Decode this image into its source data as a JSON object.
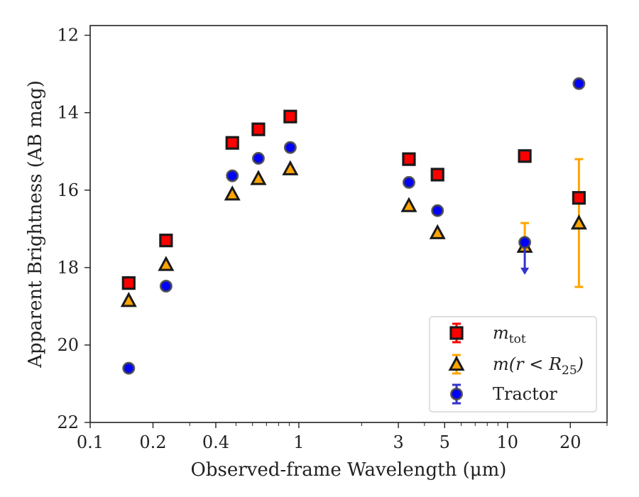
{
  "chart_data": {
    "type": "scatter",
    "xlabel": "Observed-frame Wavelength (μm)",
    "ylabel": "Apparent Brightness (AB mag)",
    "x_scale": "log",
    "xlim": [
      0.1,
      30
    ],
    "ylim": [
      22,
      11.75
    ],
    "y_inverted": true,
    "x_ticks": [
      {
        "value": 0.1,
        "label": "0.1"
      },
      {
        "value": 0.2,
        "label": "0.2"
      },
      {
        "value": 0.4,
        "label": "0.4"
      },
      {
        "value": 1,
        "label": "1"
      },
      {
        "value": 3,
        "label": "3"
      },
      {
        "value": 5,
        "label": "5"
      },
      {
        "value": 10,
        "label": "10"
      },
      {
        "value": 20,
        "label": "20"
      }
    ],
    "y_ticks": [
      {
        "value": 12,
        "label": "12"
      },
      {
        "value": 14,
        "label": "14"
      },
      {
        "value": 16,
        "label": "16"
      },
      {
        "value": 18,
        "label": "18"
      },
      {
        "value": 20,
        "label": "20"
      },
      {
        "value": 22,
        "label": "22"
      }
    ],
    "grid": false,
    "legend_position": "bottom-right",
    "series": [
      {
        "name": "m_tot",
        "label_main": "m",
        "label_sub": "tot",
        "marker": "square",
        "color": "#ff0000",
        "edge_color": "#1a1a1a",
        "points": [
          {
            "x": 0.153,
            "y": 18.4
          },
          {
            "x": 0.231,
            "y": 17.3
          },
          {
            "x": 0.48,
            "y": 14.78
          },
          {
            "x": 0.64,
            "y": 14.43
          },
          {
            "x": 0.91,
            "y": 14.1
          },
          {
            "x": 3.37,
            "y": 15.2
          },
          {
            "x": 4.62,
            "y": 15.6
          },
          {
            "x": 12.1,
            "y": 15.12
          },
          {
            "x": 22.0,
            "y": 16.2,
            "err_low": 1.0,
            "err_high": 2.3,
            "err_color": "#ffa500"
          }
        ]
      },
      {
        "name": "m(r < R25)",
        "label_main": "m(r < R",
        "label_sub": "25",
        "label_tail": ")",
        "marker": "triangle",
        "color": "#ffa500",
        "edge_color": "#1a1a1a",
        "points": [
          {
            "x": 0.153,
            "y": 18.85
          },
          {
            "x": 0.231,
            "y": 17.92
          },
          {
            "x": 0.48,
            "y": 16.1
          },
          {
            "x": 0.64,
            "y": 15.7
          },
          {
            "x": 0.91,
            "y": 15.45
          },
          {
            "x": 3.37,
            "y": 16.4
          },
          {
            "x": 4.62,
            "y": 17.1
          },
          {
            "x": 12.1,
            "y": 17.45,
            "err_low": 0.6,
            "err_high": 0.0,
            "err_color": "#ffa500"
          },
          {
            "x": 22.0,
            "y": 16.85
          }
        ]
      },
      {
        "name": "Tractor",
        "label_main": "Tractor",
        "marker": "circle",
        "color": "#0000ff",
        "edge_color": "#444444",
        "points": [
          {
            "x": 0.153,
            "y": 20.6
          },
          {
            "x": 0.231,
            "y": 18.48
          },
          {
            "x": 0.48,
            "y": 15.63
          },
          {
            "x": 0.64,
            "y": 15.18
          },
          {
            "x": 0.91,
            "y": 14.9
          },
          {
            "x": 3.37,
            "y": 15.8
          },
          {
            "x": 4.62,
            "y": 16.53
          },
          {
            "x": 12.1,
            "y": 17.35,
            "upper_limit": true,
            "arrow_to": 18.15,
            "err_color": "#3333cc"
          },
          {
            "x": 22.0,
            "y": 13.25
          }
        ]
      }
    ]
  }
}
